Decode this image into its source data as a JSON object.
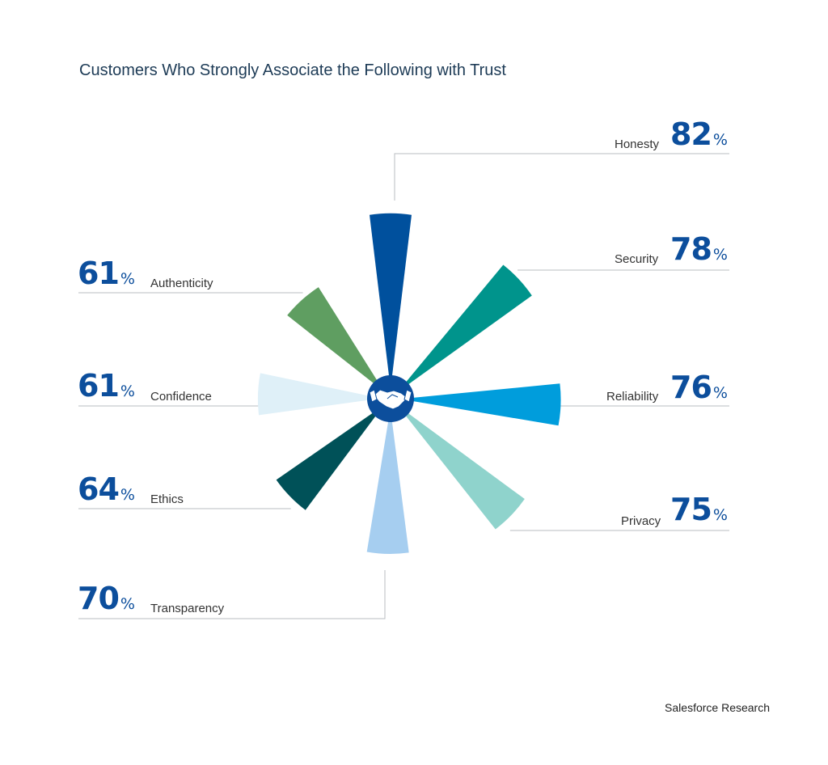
{
  "title": "Customers Who Strongly Associate the Following with Trust",
  "source": "Salesforce Research",
  "percent_sign": "%",
  "center_icon": "handshake-icon",
  "chart_data": {
    "type": "radial-bar",
    "title": "Customers Who Strongly Associate the Following with Trust",
    "unit": "%",
    "categories": [
      "Honesty",
      "Security",
      "Reliability",
      "Privacy",
      "Transparency",
      "Ethics",
      "Confidence",
      "Authenticity"
    ],
    "values": [
      82,
      78,
      76,
      75,
      70,
      64,
      61,
      61
    ],
    "colors": [
      "#00509d",
      "#00948c",
      "#009ddc",
      "#8fd3cc",
      "#a6cef0",
      "#005158",
      "#dff0f8",
      "#5f9e61"
    ],
    "items": [
      {
        "label": "Honesty",
        "value": 82,
        "color": "#00509d"
      },
      {
        "label": "Security",
        "value": 78,
        "color": "#00948c"
      },
      {
        "label": "Reliability",
        "value": 76,
        "color": "#009ddc"
      },
      {
        "label": "Privacy",
        "value": 75,
        "color": "#8fd3cc"
      },
      {
        "label": "Transparency",
        "value": 70,
        "color": "#a6cef0"
      },
      {
        "label": "Ethics",
        "value": 64,
        "color": "#005158"
      },
      {
        "label": "Confidence",
        "value": 61,
        "color": "#dff0f8"
      },
      {
        "label": "Authenticity",
        "value": 61,
        "color": "#5f9e61"
      }
    ]
  }
}
